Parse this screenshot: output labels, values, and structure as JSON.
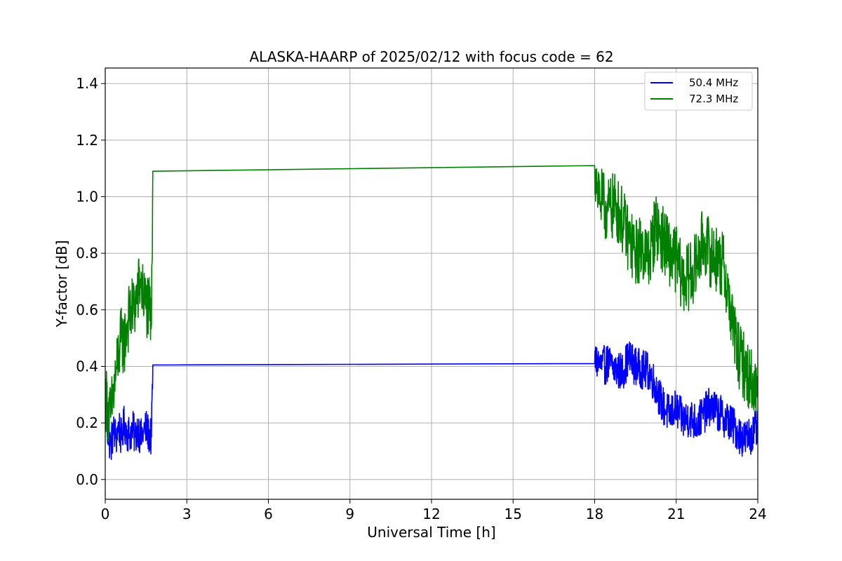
{
  "chart_data": {
    "type": "line",
    "title": "ALASKA-HAARP of 2025/02/12 with focus code = 62",
    "xlabel": "Universal Time [h]",
    "ylabel": "Y-factor [dB]",
    "xlim": [
      0,
      24
    ],
    "ylim": [
      -0.07,
      1.455
    ],
    "xticks": [
      0,
      3,
      6,
      9,
      12,
      15,
      18,
      21,
      24
    ],
    "yticks": [
      0.0,
      0.2,
      0.4,
      0.6,
      0.8,
      1.0,
      1.2,
      1.4
    ],
    "xtick_labels": [
      "0",
      "3",
      "6",
      "9",
      "12",
      "15",
      "18",
      "21",
      "24"
    ],
    "ytick_labels": [
      "0.0",
      "0.2",
      "0.4",
      "0.6",
      "0.8",
      "1.0",
      "1.2",
      "1.4"
    ],
    "grid": true,
    "legend_position": "top-right",
    "series": [
      {
        "name": "50.4 MHz",
        "color": "#0000ff",
        "x": [
          0,
          0.1,
          0.2,
          0.3,
          0.4,
          0.5,
          0.6,
          0.7,
          0.8,
          0.9,
          1.0,
          1.1,
          1.2,
          1.3,
          1.4,
          1.5,
          1.6,
          1.7,
          1.75,
          18.0,
          18.1,
          18.25,
          18.5,
          18.75,
          19.0,
          19.25,
          19.5,
          19.75,
          20.0,
          20.25,
          20.5,
          20.75,
          21.0,
          21.25,
          21.5,
          21.75,
          22.0,
          22.25,
          22.5,
          22.75,
          23.0,
          23.25,
          23.5,
          23.75,
          24.0
        ],
        "y": [
          0.28,
          0.16,
          0.12,
          0.17,
          0.15,
          0.19,
          0.14,
          0.2,
          0.17,
          0.16,
          0.18,
          0.15,
          0.19,
          0.14,
          0.17,
          0.18,
          0.16,
          0.15,
          0.405,
          0.41,
          0.42,
          0.4,
          0.41,
          0.39,
          0.38,
          0.43,
          0.4,
          0.39,
          0.38,
          0.33,
          0.26,
          0.23,
          0.25,
          0.21,
          0.22,
          0.2,
          0.23,
          0.26,
          0.24,
          0.22,
          0.2,
          0.17,
          0.14,
          0.16,
          0.18
        ]
      },
      {
        "name": "72.3 MHz",
        "color": "#008000",
        "x": [
          0,
          0.1,
          0.2,
          0.3,
          0.4,
          0.5,
          0.6,
          0.7,
          0.8,
          0.9,
          1.0,
          1.1,
          1.2,
          1.3,
          1.4,
          1.5,
          1.6,
          1.7,
          1.75,
          18.0,
          18.1,
          18.25,
          18.5,
          18.75,
          19.0,
          19.25,
          19.5,
          19.75,
          20.0,
          20.25,
          20.5,
          20.75,
          21.0,
          21.25,
          21.5,
          21.75,
          22.0,
          22.25,
          22.5,
          22.75,
          23.0,
          23.25,
          23.5,
          23.75,
          24.0
        ],
        "y": [
          0.3,
          0.25,
          0.22,
          0.3,
          0.38,
          0.45,
          0.5,
          0.48,
          0.55,
          0.58,
          0.6,
          0.62,
          0.66,
          0.7,
          0.65,
          0.62,
          0.6,
          0.55,
          1.09,
          1.11,
          1.05,
          0.98,
          0.95,
          0.97,
          0.92,
          0.85,
          0.8,
          0.82,
          0.78,
          0.9,
          0.85,
          0.8,
          0.78,
          0.7,
          0.72,
          0.76,
          0.85,
          0.8,
          0.78,
          0.75,
          0.6,
          0.45,
          0.4,
          0.35,
          0.3
        ]
      }
    ]
  }
}
